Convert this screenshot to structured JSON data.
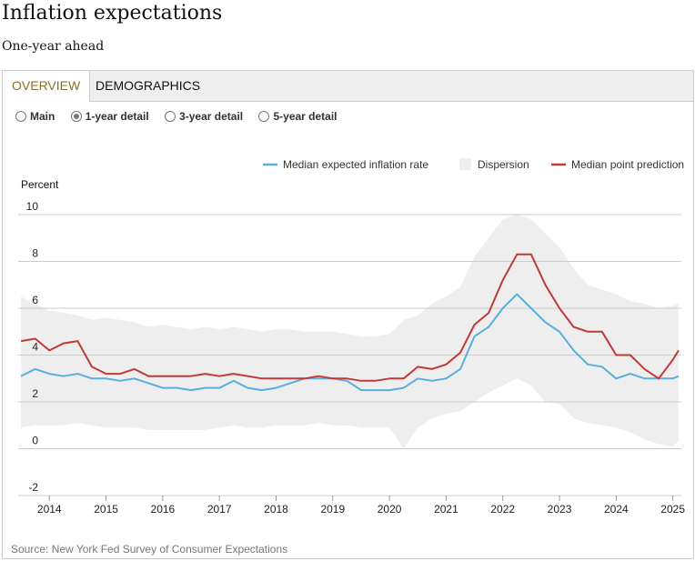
{
  "header": {
    "title": "Inflation expectations",
    "subtitle": "One-year ahead"
  },
  "tabs": [
    {
      "label": "OVERVIEW",
      "active": true
    },
    {
      "label": "DEMOGRAPHICS",
      "active": false
    }
  ],
  "radio_options": [
    {
      "label": "Main",
      "checked": false
    },
    {
      "label": "1-year detail",
      "checked": true
    },
    {
      "label": "3-year detail",
      "checked": false
    },
    {
      "label": "5-year detail",
      "checked": false
    }
  ],
  "source": "Source: New York Fed Survey of Consumer Expectations",
  "colors": {
    "median": "#5aaedb",
    "point": "#c0393a",
    "dispersion": "#eeeeee",
    "tab_active_text": "#8c6d2c"
  },
  "chart_data": {
    "type": "line",
    "ylabel": "Percent",
    "ylim": [
      -2,
      10
    ],
    "yticks": [
      10,
      8,
      6,
      4,
      2,
      0,
      -2
    ],
    "xlim": [
      2013.45,
      2025.15
    ],
    "xticks": [
      2014,
      2015,
      2016,
      2017,
      2018,
      2019,
      2020,
      2021,
      2022,
      2023,
      2024,
      2025
    ],
    "grid": true,
    "legend_placement": "top-right",
    "legend": [
      {
        "label": "Median expected inflation rate",
        "key": "median",
        "kind": "line"
      },
      {
        "label": "Dispersion",
        "key": "dispersion",
        "kind": "area"
      },
      {
        "label": "Median point prediction",
        "key": "point",
        "kind": "line"
      }
    ],
    "series": [
      {
        "name": "Median expected inflation rate",
        "key": "median",
        "x": [
          2013.5,
          2013.75,
          2014.0,
          2014.25,
          2014.5,
          2014.75,
          2015.0,
          2015.25,
          2015.5,
          2015.75,
          2016.0,
          2016.25,
          2016.5,
          2016.75,
          2017.0,
          2017.25,
          2017.5,
          2017.75,
          2018.0,
          2018.25,
          2018.5,
          2018.75,
          2019.0,
          2019.25,
          2019.5,
          2019.75,
          2020.0,
          2020.25,
          2020.5,
          2020.75,
          2021.0,
          2021.25,
          2021.5,
          2021.75,
          2022.0,
          2022.25,
          2022.5,
          2022.75,
          2023.0,
          2023.25,
          2023.5,
          2023.75,
          2024.0,
          2024.25,
          2024.5,
          2024.75,
          2025.0,
          2025.1
        ],
        "y": [
          3.1,
          3.4,
          3.2,
          3.1,
          3.2,
          3.0,
          3.0,
          2.9,
          3.0,
          2.8,
          2.6,
          2.6,
          2.5,
          2.6,
          2.6,
          2.9,
          2.6,
          2.5,
          2.6,
          2.8,
          3.0,
          3.0,
          3.0,
          2.9,
          2.5,
          2.5,
          2.5,
          2.6,
          3.0,
          2.9,
          3.0,
          3.4,
          4.8,
          5.2,
          6.0,
          6.6,
          6.0,
          5.4,
          5.0,
          4.2,
          3.6,
          3.5,
          3.0,
          3.2,
          3.0,
          3.0,
          3.0,
          3.1
        ]
      },
      {
        "name": "Median point prediction",
        "key": "point",
        "x": [
          2013.5,
          2013.75,
          2014.0,
          2014.25,
          2014.5,
          2014.75,
          2015.0,
          2015.25,
          2015.5,
          2015.75,
          2016.0,
          2016.25,
          2016.5,
          2016.75,
          2017.0,
          2017.25,
          2017.5,
          2017.75,
          2018.0,
          2018.25,
          2018.5,
          2018.75,
          2019.0,
          2019.25,
          2019.5,
          2019.75,
          2020.0,
          2020.25,
          2020.5,
          2020.75,
          2021.0,
          2021.25,
          2021.5,
          2021.75,
          2022.0,
          2022.25,
          2022.5,
          2022.75,
          2023.0,
          2023.25,
          2023.5,
          2023.75,
          2024.0,
          2024.25,
          2024.5,
          2024.75,
          2025.0,
          2025.1
        ],
        "y": [
          4.6,
          4.7,
          4.2,
          4.5,
          4.6,
          3.5,
          3.2,
          3.2,
          3.4,
          3.1,
          3.1,
          3.1,
          3.1,
          3.2,
          3.1,
          3.2,
          3.1,
          3.0,
          3.0,
          3.0,
          3.0,
          3.1,
          3.0,
          3.0,
          2.9,
          2.9,
          3.0,
          3.0,
          3.5,
          3.4,
          3.6,
          4.1,
          5.3,
          5.8,
          7.2,
          8.3,
          8.3,
          7.0,
          6.0,
          5.2,
          5.0,
          5.0,
          4.0,
          4.0,
          3.4,
          3.0,
          3.8,
          4.2
        ]
      },
      {
        "name": "Dispersion",
        "key": "dispersion",
        "kind": "band",
        "x": [
          2013.5,
          2013.75,
          2014.0,
          2014.25,
          2014.5,
          2014.75,
          2015.0,
          2015.25,
          2015.5,
          2015.75,
          2016.0,
          2016.25,
          2016.5,
          2016.75,
          2017.0,
          2017.25,
          2017.5,
          2017.75,
          2018.0,
          2018.25,
          2018.5,
          2018.75,
          2019.0,
          2019.25,
          2019.5,
          2019.75,
          2020.0,
          2020.25,
          2020.5,
          2020.75,
          2021.0,
          2021.25,
          2021.5,
          2021.75,
          2022.0,
          2022.25,
          2022.5,
          2022.75,
          2023.0,
          2023.25,
          2023.5,
          2023.75,
          2024.0,
          2024.25,
          2024.5,
          2024.75,
          2025.0,
          2025.1
        ],
        "low": [
          0.9,
          1.0,
          1.0,
          1.0,
          1.1,
          1.0,
          0.9,
          0.9,
          0.9,
          0.8,
          0.8,
          0.8,
          0.8,
          0.8,
          0.9,
          1.0,
          0.9,
          0.9,
          1.0,
          1.0,
          1.0,
          1.1,
          1.0,
          1.0,
          0.9,
          0.9,
          0.9,
          0.0,
          0.9,
          1.3,
          1.5,
          1.6,
          2.0,
          2.4,
          2.7,
          3.0,
          2.7,
          2.0,
          1.9,
          1.3,
          1.1,
          1.0,
          0.9,
          0.7,
          0.4,
          0.2,
          0.1,
          0.3
        ],
        "high": [
          6.5,
          6.2,
          5.9,
          5.8,
          5.7,
          5.5,
          5.6,
          5.5,
          5.4,
          5.2,
          5.3,
          5.2,
          5.1,
          5.2,
          5.1,
          5.2,
          5.1,
          5.0,
          5.1,
          5.1,
          5.0,
          5.0,
          5.0,
          4.9,
          4.8,
          4.8,
          4.9,
          5.5,
          5.7,
          6.2,
          6.5,
          6.9,
          8.2,
          9.0,
          9.8,
          10.0,
          9.8,
          9.2,
          8.6,
          7.7,
          7.0,
          6.8,
          6.6,
          6.3,
          6.2,
          6.0,
          6.1,
          6.2
        ]
      }
    ]
  }
}
